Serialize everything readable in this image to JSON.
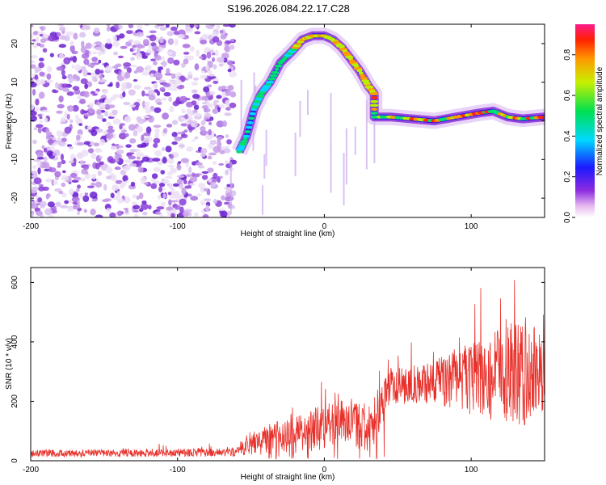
{
  "figure_title": "S196.2026.084.22.17.C28",
  "chart_data": [
    {
      "type": "heatmap",
      "xlabel": "Height of straight line (km)",
      "ylabel": "Frequency (Hz)",
      "xlim": [
        -200,
        150
      ],
      "ylim": [
        -25,
        25
      ],
      "xticks": [
        -200,
        -100,
        0,
        100
      ],
      "yticks": [
        20,
        10,
        0,
        -10,
        -20
      ],
      "colorbar": {
        "label": "Normalized spectral amplitude",
        "range": [
          0,
          0.95
        ],
        "ticks": [
          0.0,
          0.2,
          0.4,
          0.6,
          0.8
        ]
      },
      "features": {
        "noise_region_x": [
          -200,
          -62
        ],
        "trace": [
          {
            "x": -58,
            "y": -8
          },
          {
            "x": -53,
            "y": -4
          },
          {
            "x": -48,
            "y": 3
          },
          {
            "x": -43,
            "y": 7
          },
          {
            "x": -37,
            "y": 10
          },
          {
            "x": -30,
            "y": 15
          },
          {
            "x": -22,
            "y": 18
          },
          {
            "x": -15,
            "y": 21
          },
          {
            "x": -8,
            "y": 22
          },
          {
            "x": 0,
            "y": 22
          },
          {
            "x": 6,
            "y": 21
          },
          {
            "x": 12,
            "y": 19
          },
          {
            "x": 18,
            "y": 16
          },
          {
            "x": 24,
            "y": 13
          },
          {
            "x": 30,
            "y": 9
          },
          {
            "x": 34,
            "y": 7
          },
          {
            "x": 34,
            "y": 1
          },
          {
            "x": 45,
            "y": 1
          },
          {
            "x": 60,
            "y": 0.5
          },
          {
            "x": 75,
            "y": 0
          },
          {
            "x": 90,
            "y": 1
          },
          {
            "x": 105,
            "y": 2
          },
          {
            "x": 115,
            "y": 2.5
          },
          {
            "x": 125,
            "y": 1
          },
          {
            "x": 135,
            "y": 0.5
          },
          {
            "x": 150,
            "y": 1
          }
        ]
      }
    },
    {
      "type": "line",
      "xlabel": "Height of straight line (km)",
      "ylabel": "SNR (10 * v/v)",
      "xlim": [
        -200,
        150
      ],
      "ylim": [
        0,
        650
      ],
      "xticks": [
        -200,
        -100,
        0,
        100
      ],
      "yticks": [
        0,
        200,
        400,
        600
      ],
      "series": [
        {
          "name": "SNR",
          "color": "#e8302a",
          "envelope": [
            {
              "x": -200,
              "mean": 25,
              "amp": 12
            },
            {
              "x": -130,
              "mean": 26,
              "amp": 14
            },
            {
              "x": -62,
              "mean": 28,
              "amp": 14
            },
            {
              "x": -50,
              "mean": 60,
              "amp": 40
            },
            {
              "x": -30,
              "mean": 80,
              "amp": 60
            },
            {
              "x": -10,
              "mean": 95,
              "amp": 70
            },
            {
              "x": 0,
              "mean": 120,
              "amp": 80
            },
            {
              "x": 10,
              "mean": 150,
              "amp": 90
            },
            {
              "x": 20,
              "mean": 130,
              "amp": 80
            },
            {
              "x": 30,
              "mean": 100,
              "amp": 90
            },
            {
              "x": 45,
              "mean": 250,
              "amp": 60
            },
            {
              "x": 70,
              "mean": 260,
              "amp": 70
            },
            {
              "x": 90,
              "mean": 270,
              "amp": 100
            },
            {
              "x": 110,
              "mean": 280,
              "amp": 140
            },
            {
              "x": 130,
              "mean": 290,
              "amp": 180
            },
            {
              "x": 150,
              "mean": 290,
              "amp": 150
            }
          ],
          "peak_max": 645
        }
      ]
    }
  ]
}
